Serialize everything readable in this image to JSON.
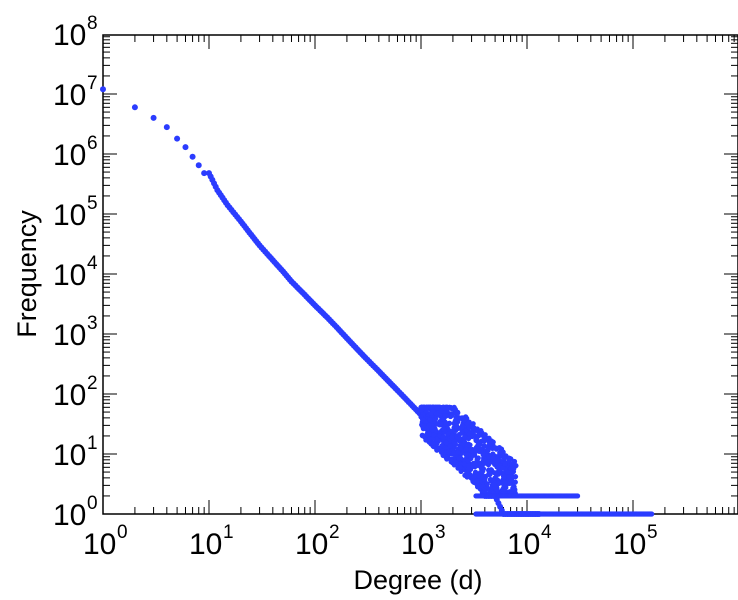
{
  "chart_data": {
    "type": "scatter",
    "title": "",
    "xlabel": "Degree (d)",
    "ylabel": "Frequency",
    "x_scale": "log",
    "y_scale": "log",
    "xlim": [
      1,
      1000000
    ],
    "ylim": [
      1,
      100000000
    ],
    "x_ticks": [
      {
        "base": "10",
        "exp": "0"
      },
      {
        "base": "10",
        "exp": "1"
      },
      {
        "base": "10",
        "exp": "2"
      },
      {
        "base": "10",
        "exp": "3"
      },
      {
        "base": "10",
        "exp": "4"
      },
      {
        "base": "10",
        "exp": "5"
      }
    ],
    "y_ticks": [
      {
        "base": "10",
        "exp": "0"
      },
      {
        "base": "10",
        "exp": "1"
      },
      {
        "base": "10",
        "exp": "2"
      },
      {
        "base": "10",
        "exp": "3"
      },
      {
        "base": "10",
        "exp": "4"
      },
      {
        "base": "10",
        "exp": "5"
      },
      {
        "base": "10",
        "exp": "6"
      },
      {
        "base": "10",
        "exp": "7"
      },
      {
        "base": "10",
        "exp": "8"
      }
    ],
    "grid": false,
    "legend": "none",
    "marker_color": "#2b3cff",
    "series": [
      {
        "points": [
          [
            1,
            12000000
          ],
          [
            2,
            6000000
          ],
          [
            3,
            4000000
          ],
          [
            4,
            2800000
          ],
          [
            5,
            1800000
          ],
          [
            6,
            1300000
          ],
          [
            7,
            900000
          ],
          [
            8,
            650000
          ],
          [
            9,
            480000
          ],
          [
            10,
            480000
          ],
          [
            12,
            250000
          ],
          [
            15,
            140000
          ],
          [
            20,
            75000
          ],
          [
            25,
            45000
          ],
          [
            30,
            30000
          ],
          [
            40,
            17000
          ],
          [
            50,
            11000
          ],
          [
            60,
            7500
          ],
          [
            80,
            4500
          ],
          [
            100,
            3000
          ],
          [
            130,
            1900
          ],
          [
            160,
            1300
          ],
          [
            200,
            850
          ],
          [
            250,
            560
          ],
          [
            300,
            400
          ],
          [
            400,
            240
          ],
          [
            500,
            160
          ],
          [
            600,
            115
          ],
          [
            800,
            68
          ],
          [
            1000,
            45
          ],
          [
            1200,
            32
          ],
          [
            1500,
            20
          ],
          [
            1800,
            14
          ],
          [
            2200,
            9
          ],
          [
            2600,
            6
          ],
          [
            3000,
            4
          ],
          [
            3500,
            3
          ],
          [
            4000,
            2
          ],
          [
            5000,
            2
          ],
          [
            6000,
            1
          ],
          [
            8000,
            1
          ],
          [
            10000,
            1
          ],
          [
            13000,
            1
          ]
        ],
        "scatter_band": {
          "x_range": [
            1000,
            8000
          ],
          "y_range": [
            2,
            60
          ]
        },
        "level_y2": {
          "value": 2,
          "x_range": [
            3300,
            30000
          ]
        },
        "level_y1": {
          "value": 1,
          "x_range": [
            3300,
            150000
          ]
        }
      }
    ]
  }
}
